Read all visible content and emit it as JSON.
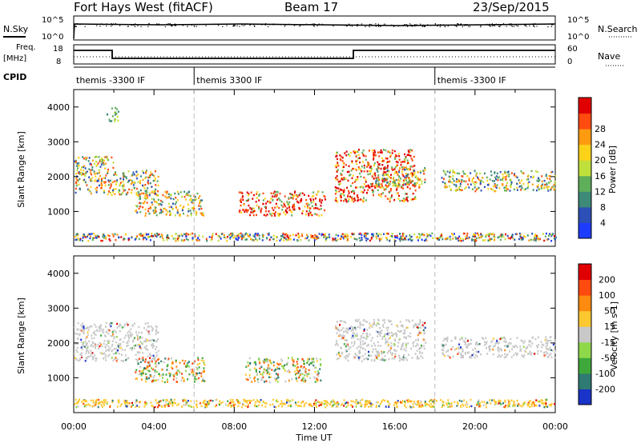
{
  "header": {
    "radar": "Fort Hays West (fitACF)",
    "beam": "Beam 17",
    "date": "23/Sep/2015"
  },
  "strip": {
    "nsky_label": "N.Sky",
    "nsearch_label": "N.Search",
    "nsky_ticks": [
      "10^5",
      "10^0"
    ],
    "nsearch_ticks": [
      "10^5",
      "10^0"
    ],
    "freq_label": "Freq.",
    "freq_unit": "[MHz]",
    "freq_ticks": [
      "18",
      "8"
    ],
    "nave_label": "Nave",
    "nave_ticks": [
      "60",
      "0"
    ],
    "cpid_label": "CPID",
    "cpid_segments": [
      {
        "label": "themis -3300 IF",
        "start_hour": 0
      },
      {
        "label": "themis 3300 IF",
        "start_hour": 6
      },
      {
        "label": "themis -3300 IF",
        "start_hour": 18
      }
    ]
  },
  "chart_data": [
    {
      "type": "heatmap",
      "name": "power",
      "xlabel": "Time UT",
      "ylabel": "Slant Range [km]",
      "xlim": [
        0,
        24
      ],
      "ylim": [
        0,
        4500
      ],
      "yticks": [
        1000,
        2000,
        3000,
        4000
      ],
      "colorbar": {
        "label": "Power [dB]",
        "ticks": [
          "4",
          "8",
          "12",
          "16",
          "20",
          "24",
          "28"
        ],
        "colors": [
          "#1e3cff",
          "#2c4fb8",
          "#3d8a78",
          "#5fae5a",
          "#bfe03a",
          "#ffd21a",
          "#ff9b10",
          "#ff4a10",
          "#e00000"
        ]
      },
      "echo_regions": [
        {
          "t": [
            0.0,
            2.0
          ],
          "range": [
            1500,
            2600
          ],
          "level": "mixed"
        },
        {
          "t": [
            1.6,
            2.2
          ],
          "range": [
            3600,
            4000
          ],
          "level": "low"
        },
        {
          "t": [
            2.0,
            4.2
          ],
          "range": [
            1500,
            2200
          ],
          "level": "mixed"
        },
        {
          "t": [
            3.0,
            6.5
          ],
          "range": [
            900,
            1600
          ],
          "level": "mixed"
        },
        {
          "t": [
            8.2,
            12.5
          ],
          "range": [
            900,
            1600
          ],
          "level": "high"
        },
        {
          "t": [
            13.0,
            17.0
          ],
          "range": [
            1300,
            2800
          ],
          "level": "high"
        },
        {
          "t": [
            15.0,
            17.5
          ],
          "range": [
            1700,
            2300
          ],
          "level": "mixed"
        },
        {
          "t": [
            18.3,
            24.0
          ],
          "range": [
            1600,
            2200
          ],
          "level": "mixed"
        },
        {
          "t": [
            0.0,
            24.0
          ],
          "range": [
            180,
            400
          ],
          "level": "ground"
        }
      ]
    },
    {
      "type": "heatmap",
      "name": "velocity",
      "xlabel": "Time UT",
      "ylabel": "Slant Range [km]",
      "xlim": [
        0,
        24
      ],
      "ylim": [
        0,
        4500
      ],
      "yticks": [
        1000,
        2000,
        3000,
        4000
      ],
      "xticks": [
        "00:00",
        "04:00",
        "08:00",
        "12:00",
        "16:00",
        "20:00",
        "00:00"
      ],
      "colorbar": {
        "label": "Velocity [m s-1]",
        "ticks": [
          "200",
          "100",
          "50",
          "15",
          "-15",
          "-50",
          "-100",
          "-200"
        ],
        "colors": [
          "#1a33c8",
          "#2f7a72",
          "#3ea83a",
          "#8ed84a",
          "#c8c8c8",
          "#ffc830",
          "#ff8a10",
          "#ff4a10",
          "#e00000"
        ]
      },
      "echo_regions": [
        {
          "t": [
            0.0,
            4.2
          ],
          "range": [
            1500,
            2600
          ],
          "level": "ground-grey"
        },
        {
          "t": [
            3.0,
            6.5
          ],
          "range": [
            900,
            1600
          ],
          "level": "mixed"
        },
        {
          "t": [
            8.5,
            12.3
          ],
          "range": [
            900,
            1600
          ],
          "level": "mixed"
        },
        {
          "t": [
            13.0,
            17.5
          ],
          "range": [
            1500,
            2700
          ],
          "level": "ground-grey"
        },
        {
          "t": [
            18.3,
            24.0
          ],
          "range": [
            1600,
            2200
          ],
          "level": "ground-grey"
        },
        {
          "t": [
            0.0,
            24.0
          ],
          "range": [
            180,
            400
          ],
          "level": "orange-low"
        }
      ]
    }
  ]
}
